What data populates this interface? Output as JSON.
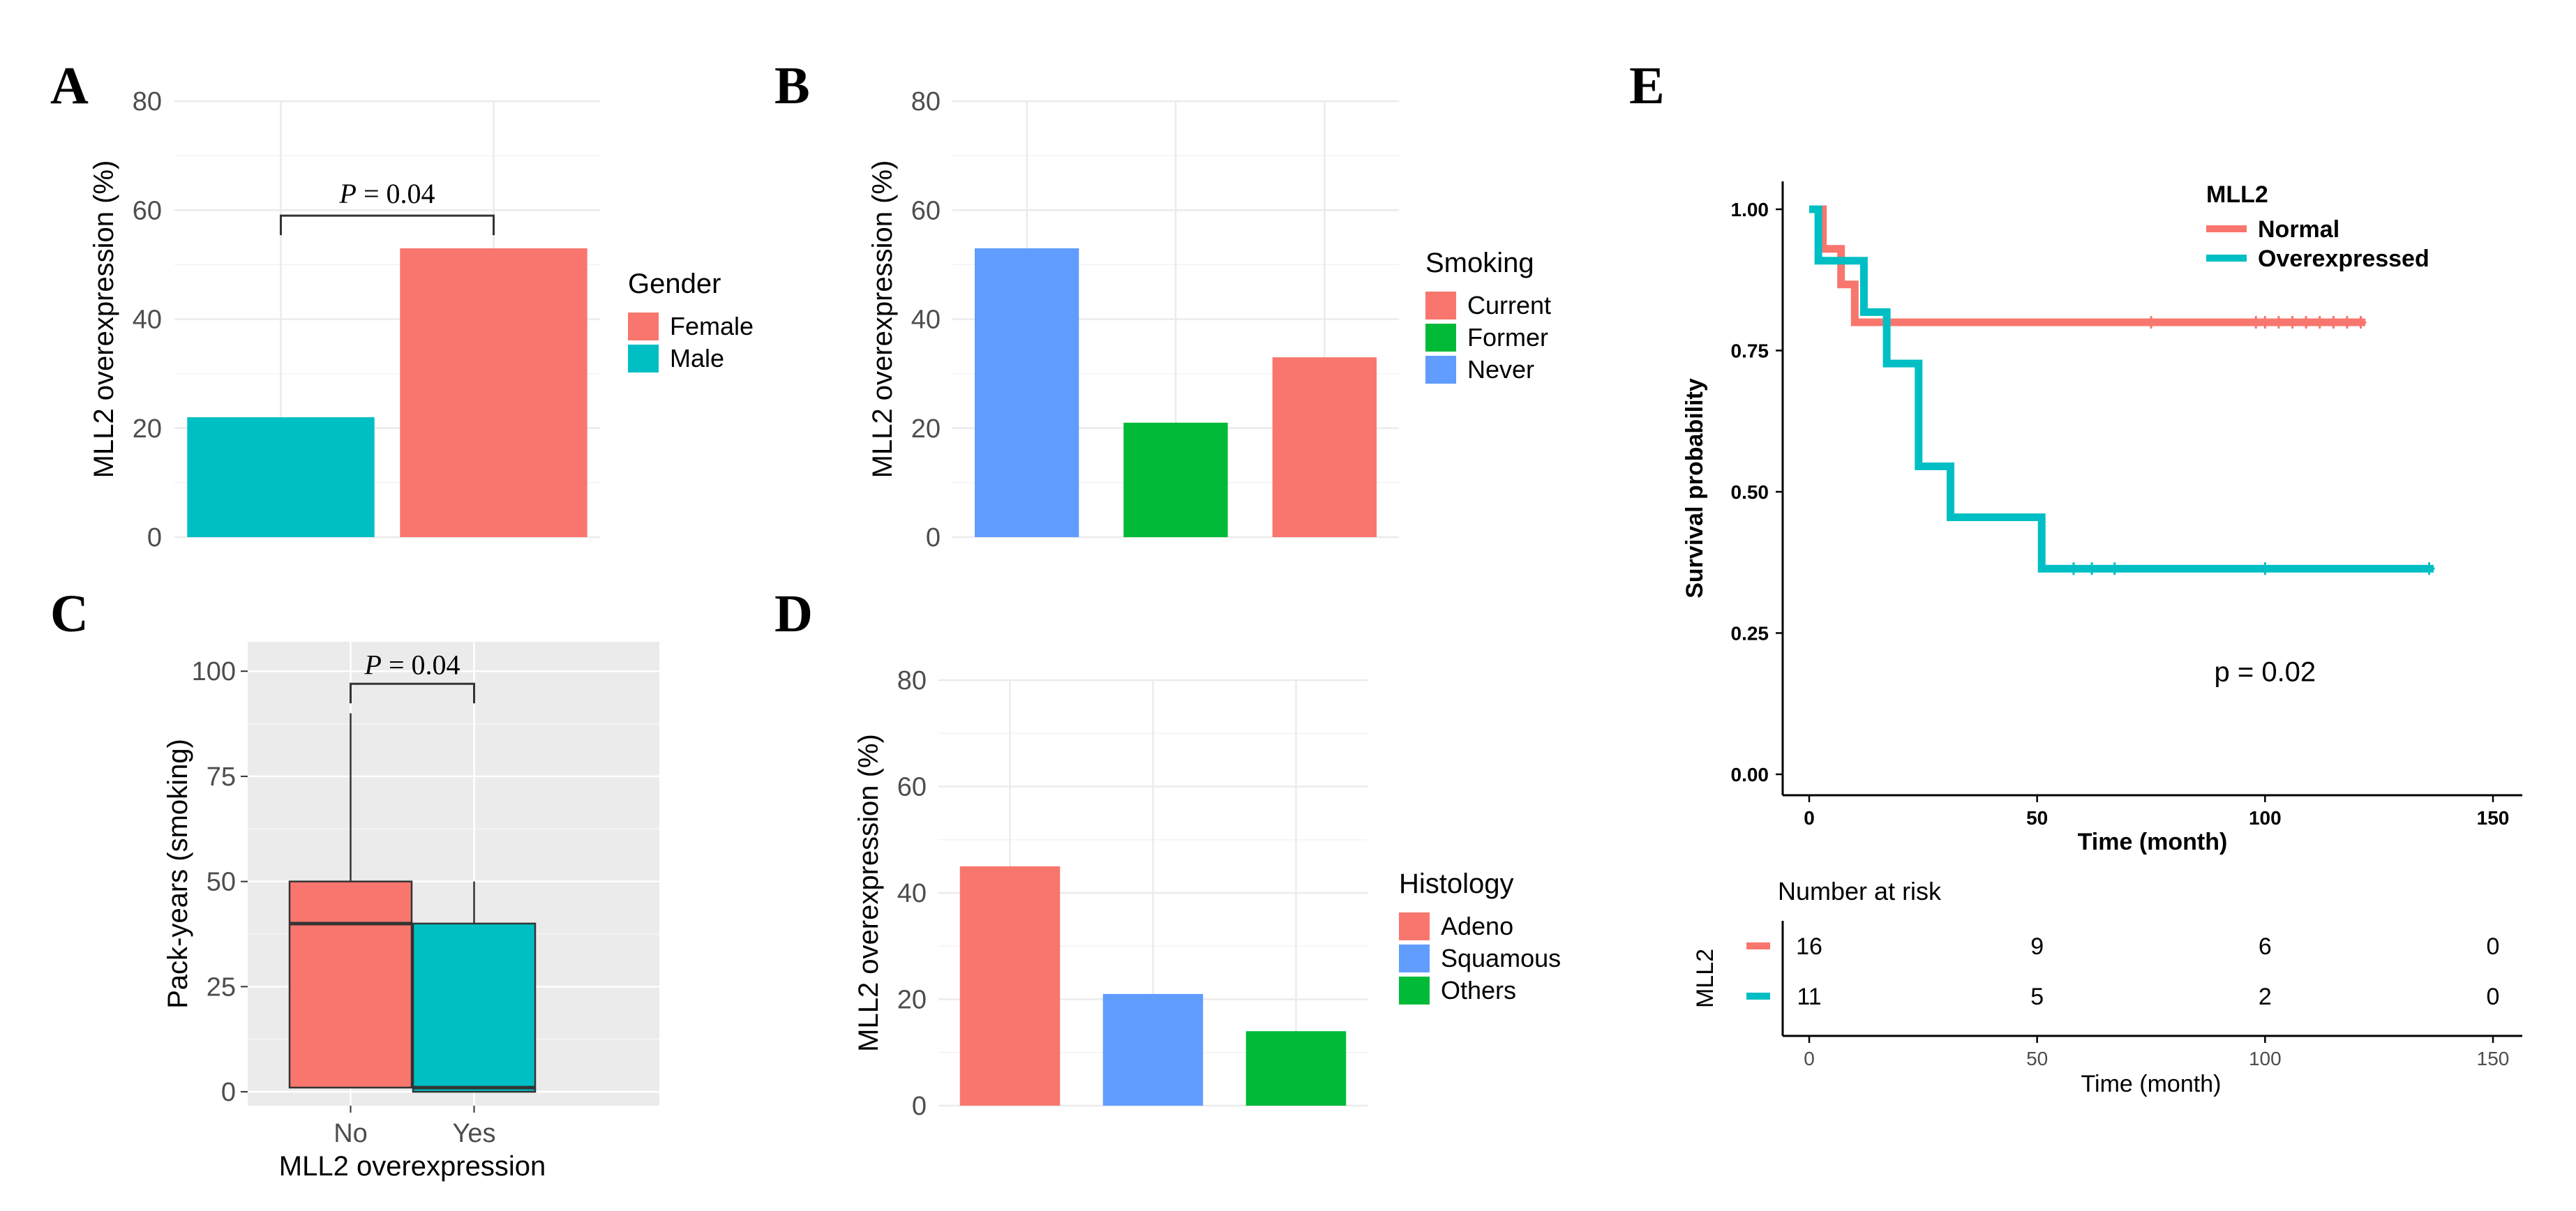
{
  "figure": {
    "panels": [
      {
        "id": "A",
        "label": "A"
      },
      {
        "id": "B",
        "label": "B"
      },
      {
        "id": "C",
        "label": "C"
      },
      {
        "id": "D",
        "label": "D"
      },
      {
        "id": "E",
        "label": "E"
      }
    ]
  },
  "chart_data": [
    {
      "id": "A",
      "type": "bar",
      "ylabel": "MLL2 overexpression (%)",
      "xlabel": "",
      "ylim": [
        0,
        80
      ],
      "yticks": [
        0,
        20,
        40,
        60,
        80
      ],
      "categories": [
        "Male",
        "Female"
      ],
      "values": [
        22,
        53
      ],
      "colors": [
        "#00BFC4",
        "#F8766D"
      ],
      "legend": {
        "title": "Gender",
        "items": [
          {
            "label": "Female",
            "color": "#F8766D"
          },
          {
            "label": "Male",
            "color": "#00BFC4"
          }
        ]
      },
      "annotation": {
        "italic": "P",
        "text": " = 0.04",
        "bracket_y": 59
      },
      "grid": true
    },
    {
      "id": "B",
      "type": "bar",
      "ylabel": "MLL2 overexpression (%)",
      "xlabel": "",
      "ylim": [
        0,
        80
      ],
      "yticks": [
        0,
        20,
        40,
        60,
        80
      ],
      "categories": [
        "Never",
        "Former",
        "Current"
      ],
      "values": [
        53,
        21,
        33
      ],
      "colors": [
        "#619CFF",
        "#00BA38",
        "#F8766D"
      ],
      "legend": {
        "title": "Smoking",
        "items": [
          {
            "label": "Current",
            "color": "#F8766D"
          },
          {
            "label": "Former",
            "color": "#00BA38"
          },
          {
            "label": "Never",
            "color": "#619CFF"
          }
        ]
      },
      "grid": true
    },
    {
      "id": "C",
      "type": "box",
      "ylabel": "Pack-years (smoking)",
      "xlabel": "MLL2 overexpression",
      "ylim": [
        0,
        100
      ],
      "yticks": [
        0,
        25,
        50,
        75,
        100
      ],
      "categories": [
        "No",
        "Yes"
      ],
      "boxes": [
        {
          "name": "No",
          "min": 1,
          "q1": 1,
          "median": 40,
          "q3": 50,
          "max": 90,
          "color": "#F8766D"
        },
        {
          "name": "Yes",
          "min": 0,
          "q1": 0,
          "median": 1,
          "q3": 40,
          "max": 50,
          "color": "#00BFC4"
        }
      ],
      "annotation": {
        "italic": "P",
        "text": " = 0.04",
        "bracket_y": 97
      },
      "grid": true
    },
    {
      "id": "D",
      "type": "bar",
      "ylabel": "MLL2 overexpression (%)",
      "xlabel": "",
      "ylim": [
        0,
        80
      ],
      "yticks": [
        0,
        20,
        40,
        60,
        80
      ],
      "categories": [
        "Adeno",
        "Squamous",
        "Others"
      ],
      "values": [
        45,
        21,
        14
      ],
      "colors": [
        "#F8766D",
        "#619CFF",
        "#00BA38"
      ],
      "legend": {
        "title": "Histology",
        "items": [
          {
            "label": "Adeno",
            "color": "#F8766D"
          },
          {
            "label": "Squamous",
            "color": "#619CFF"
          },
          {
            "label": "Others",
            "color": "#00BA38"
          }
        ]
      },
      "grid": true
    },
    {
      "id": "E",
      "type": "line",
      "subtype": "kaplan-meier",
      "ylabel": "Survival probability",
      "xlabel": "Time (month)",
      "xlim": [
        0,
        150
      ],
      "xticks": [
        0,
        50,
        100,
        150
      ],
      "ylim": [
        0,
        1
      ],
      "yticks": [
        "0.00",
        "0.25",
        "0.50",
        "0.75",
        "1.00"
      ],
      "legend": {
        "title": "MLL2",
        "items": [
          {
            "label": "Normal",
            "color": "#F8766D"
          },
          {
            "label": "Overexpressed",
            "color": "#00BFC4"
          }
        ]
      },
      "pvalue_text": "p = 0.02",
      "series": [
        {
          "name": "Normal",
          "color": "#F8766D",
          "steps": [
            [
              0,
              1.0
            ],
            [
              3,
              1.0
            ],
            [
              3,
              0.93
            ],
            [
              7,
              0.93
            ],
            [
              7,
              0.867
            ],
            [
              10,
              0.867
            ],
            [
              10,
              0.8
            ],
            [
              122,
              0.8
            ]
          ],
          "censors": [
            [
              75,
              0.8
            ],
            [
              98,
              0.8
            ],
            [
              100,
              0.8
            ],
            [
              103,
              0.8
            ],
            [
              106,
              0.8
            ],
            [
              109,
              0.8
            ],
            [
              112,
              0.8
            ],
            [
              115,
              0.8
            ],
            [
              118,
              0.8
            ],
            [
              121,
              0.8
            ]
          ]
        },
        {
          "name": "Overexpressed",
          "color": "#00BFC4",
          "steps": [
            [
              0,
              1.0
            ],
            [
              2,
              1.0
            ],
            [
              2,
              0.909
            ],
            [
              12,
              0.909
            ],
            [
              12,
              0.818
            ],
            [
              17,
              0.818
            ],
            [
              17,
              0.727
            ],
            [
              24,
              0.727
            ],
            [
              24,
              0.545
            ],
            [
              31,
              0.545
            ],
            [
              31,
              0.455
            ],
            [
              51,
              0.455
            ],
            [
              51,
              0.364
            ],
            [
              137,
              0.364
            ]
          ],
          "censors": [
            [
              58,
              0.364
            ],
            [
              62,
              0.364
            ],
            [
              67,
              0.364
            ],
            [
              100,
              0.364
            ],
            [
              136,
              0.364
            ]
          ]
        }
      ],
      "risk_table": {
        "title": "Number at risk",
        "ylabel": "MLL2",
        "xlabel": "Time (month)",
        "times": [
          0,
          50,
          100,
          150
        ],
        "rows": [
          {
            "name": "Normal",
            "color": "#F8766D",
            "counts": [
              16,
              9,
              6,
              0
            ]
          },
          {
            "name": "Overexpressed",
            "color": "#00BFC4",
            "counts": [
              11,
              5,
              2,
              0
            ]
          }
        ]
      }
    }
  ]
}
